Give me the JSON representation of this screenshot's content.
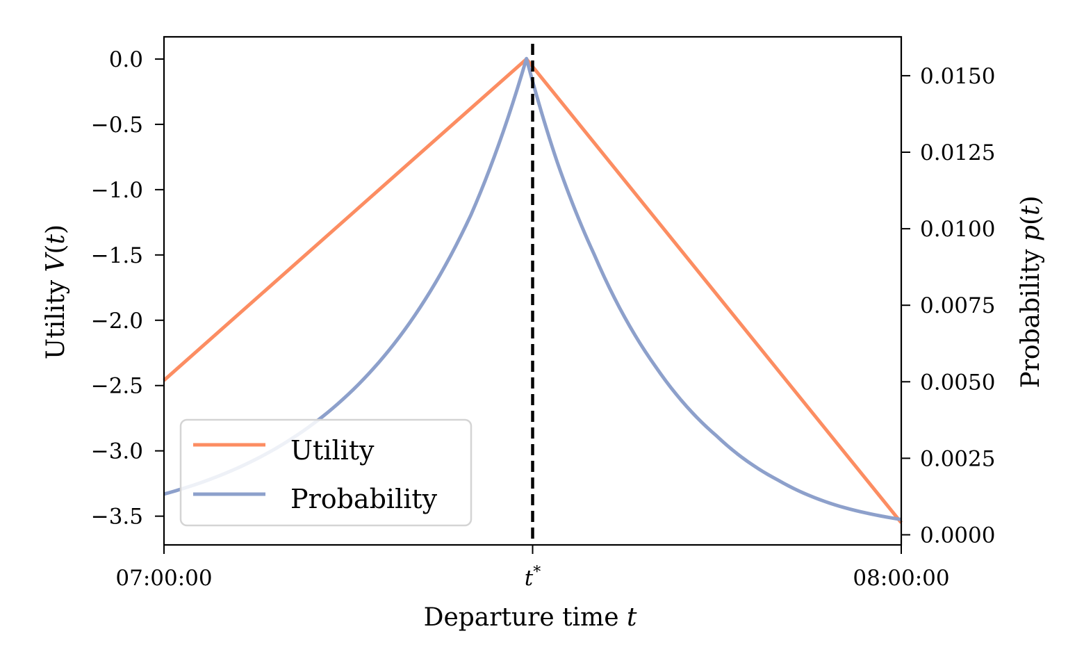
{
  "chart_data": {
    "type": "line",
    "title": "",
    "xlabel": "Departure time t",
    "xlabel_parts": {
      "text": "Departure time ",
      "var": "t"
    },
    "ylabel_left": "Utility V(t)",
    "ylabel_left_parts": {
      "text": "Utility ",
      "var": "V",
      "arg": "t"
    },
    "ylabel_right": "Probability p(t)",
    "ylabel_right_parts": {
      "text": "Probability ",
      "var": "p",
      "arg": "t"
    },
    "x_ticks": [
      {
        "value": 0,
        "label": "07:00:00"
      },
      {
        "value": 30,
        "label": "t*"
      },
      {
        "value": 60,
        "label": "08:00:00"
      }
    ],
    "t_star_label_parts": {
      "var": "t",
      "sup": "*"
    },
    "x_range": [
      0,
      60
    ],
    "ylim_left": [
      -3.72,
      0.17
    ],
    "yticks_left": [
      {
        "value": 0.0,
        "label": "0.0"
      },
      {
        "value": -0.5,
        "label": "−0.5"
      },
      {
        "value": -1.0,
        "label": "−1.0"
      },
      {
        "value": -1.5,
        "label": "−1.5"
      },
      {
        "value": -2.0,
        "label": "−2.0"
      },
      {
        "value": -2.5,
        "label": "−2.5"
      },
      {
        "value": -3.0,
        "label": "−3.0"
      },
      {
        "value": -3.5,
        "label": "−3.5"
      }
    ],
    "ylim_right": [
      -0.00033,
      0.01627
    ],
    "yticks_right": [
      {
        "value": 0.0,
        "label": "0.0000"
      },
      {
        "value": 0.0025,
        "label": "0.0025"
      },
      {
        "value": 0.005,
        "label": "0.0050"
      },
      {
        "value": 0.0075,
        "label": "0.0075"
      },
      {
        "value": 0.01,
        "label": "0.0100"
      },
      {
        "value": 0.0125,
        "label": "0.0125"
      },
      {
        "value": 0.015,
        "label": "0.0150"
      }
    ],
    "vline": {
      "x": 30,
      "style": "dashed",
      "color": "#000000"
    },
    "legend_position": "lower-left",
    "grid": false,
    "series": [
      {
        "name": "Utility",
        "axis": "left",
        "color": "#fc8d62",
        "x": [
          0,
          29.5,
          60
        ],
        "y": [
          -2.46,
          0.0,
          -3.55
        ]
      },
      {
        "name": "Probability",
        "axis": "right",
        "color": "#8da0cb",
        "x": [
          0,
          5,
          10,
          15,
          20,
          25,
          29.5,
          32,
          35,
          40,
          45,
          50,
          55,
          60
        ],
        "y": [
          0.00133,
          0.00201,
          0.00304,
          0.00459,
          0.00693,
          0.01047,
          0.01556,
          0.01218,
          0.00917,
          0.0055,
          0.00322,
          0.00178,
          0.00093,
          0.0005
        ]
      }
    ]
  }
}
